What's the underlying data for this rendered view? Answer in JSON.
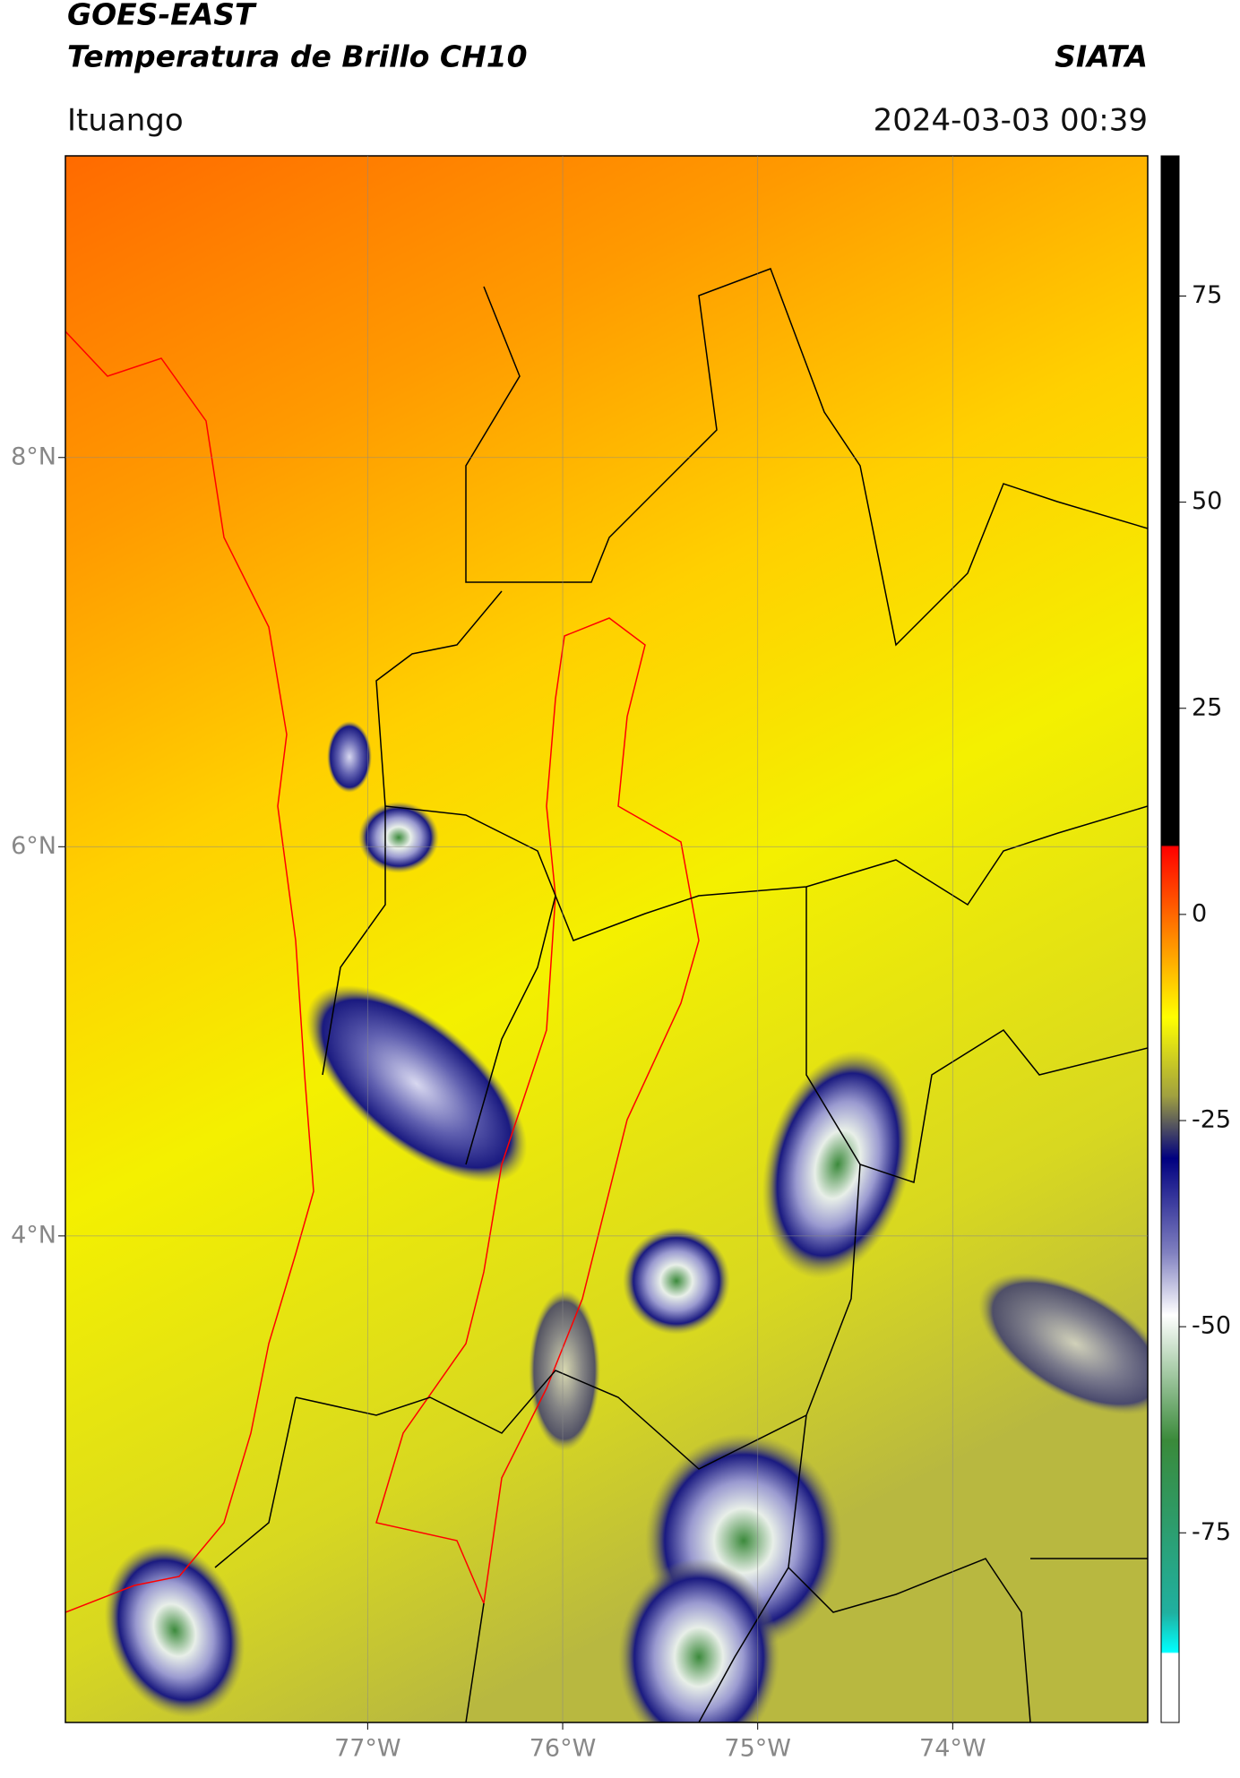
{
  "header": {
    "title": "GOES-EAST",
    "subtitle": "Temperatura de Brillo CH10",
    "source": "SIATA",
    "location": "Ituango",
    "datetime": "2024-03-03 00:39"
  },
  "map": {
    "xlim": [
      -78.55,
      -73.0
    ],
    "ylim": [
      1.5,
      9.55
    ],
    "xticks": [
      {
        "value": -77,
        "label": "77°W"
      },
      {
        "value": -76,
        "label": "76°W"
      },
      {
        "value": -75,
        "label": "75°W"
      },
      {
        "value": -74,
        "label": "74°W"
      }
    ],
    "yticks": [
      {
        "value": 8,
        "label": "8°N"
      },
      {
        "value": 6,
        "label": "6°N"
      },
      {
        "value": 4,
        "label": "4°N"
      }
    ],
    "grid": true
  },
  "colorbar": {
    "lim": [
      -98,
      92
    ],
    "ticks": [
      -75,
      -50,
      -25,
      0,
      25,
      50,
      75
    ]
  }
}
